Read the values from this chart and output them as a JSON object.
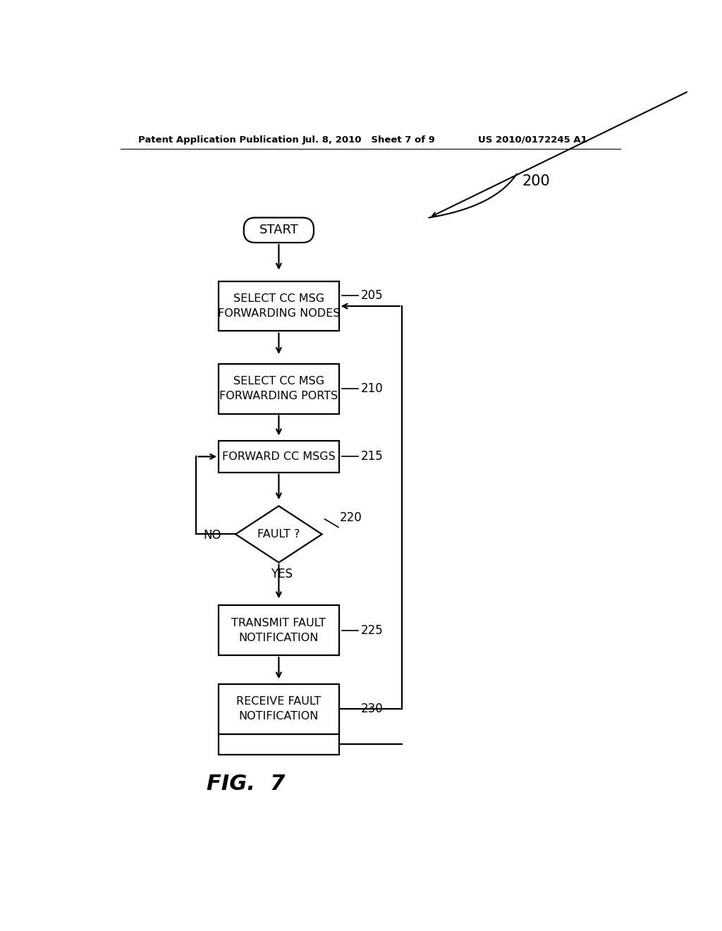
{
  "bg_color": "#ffffff",
  "header_left": "Patent Application Publication",
  "header_mid": "Jul. 8, 2010   Sheet 7 of 9",
  "header_right": "US 2010/0172245 A1",
  "fig_label": "FIG.  7",
  "label_200": "200",
  "label_205": "205",
  "label_210": "210",
  "label_215": "215",
  "label_220": "220",
  "label_225": "225",
  "label_230": "230",
  "start_text": "START",
  "box205_text": "SELECT CC MSG\nFORWARDING NODES",
  "box210_text": "SELECT CC MSG\nFORWARDING PORTS",
  "box215_text": "FORWARD CC MSGS",
  "diamond220_text": "FAULT ?",
  "no_text": "NO",
  "yes_text": "YES",
  "box225_text": "TRANSMIT FAULT\nNOTIFICATION",
  "box230_text": "RECEIVE FAULT\nNOTIFICATION",
  "line_color": "#000000",
  "text_color": "#000000"
}
